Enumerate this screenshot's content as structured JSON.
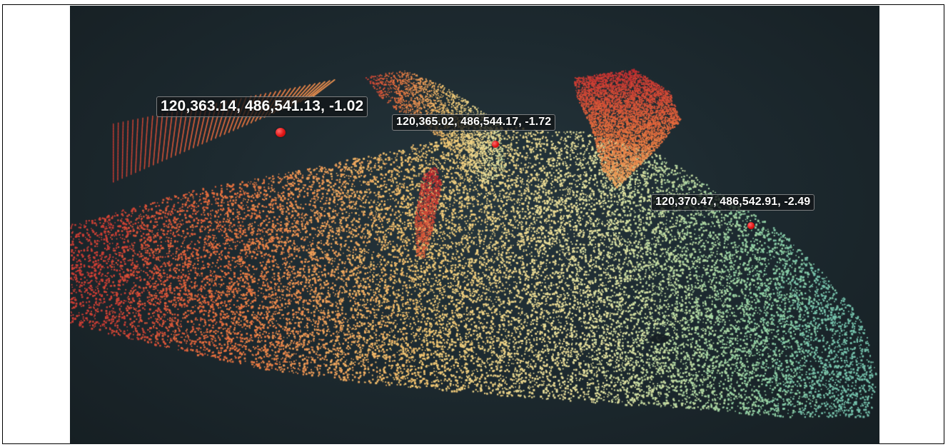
{
  "viewer": {
    "background_color": "#1d2a30",
    "point_cloud": {
      "colormap": [
        "#c0262f",
        "#e8743f",
        "#f2c46f",
        "#e8e3a0",
        "#8fd0a4",
        "#3fa3bc",
        "#3a6fb2"
      ]
    },
    "measurements": [
      {
        "label": "120,363.14, 486,541.13, -1.02",
        "marker_color": "#e01515"
      },
      {
        "label": "120,365.02, 486,544.17, -1.72",
        "marker_color": "#e01515"
      },
      {
        "label": "120,370.47, 486,542.91, -2.49",
        "marker_color": "#e01515"
      }
    ]
  }
}
